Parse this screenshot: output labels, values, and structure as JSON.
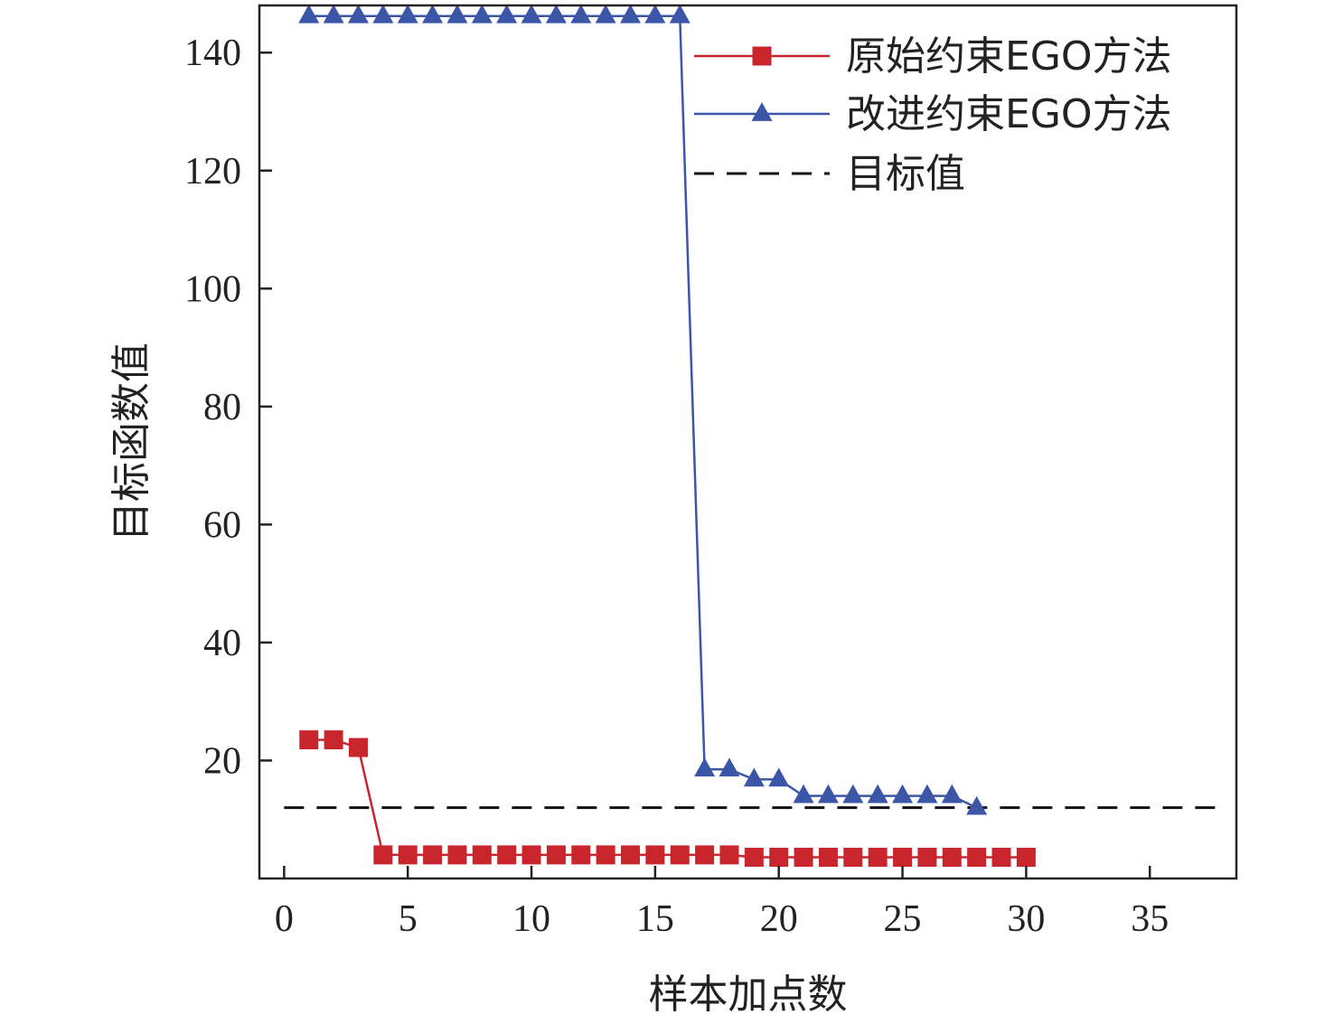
{
  "chart_data": {
    "type": "line",
    "xlabel": "样本加点数",
    "ylabel": "目标函数值",
    "xlim": [
      -1,
      38.5
    ],
    "ylim": [
      0,
      148
    ],
    "xticks": [
      0,
      5,
      10,
      15,
      20,
      25,
      30,
      35
    ],
    "yticks": [
      20,
      40,
      60,
      80,
      100,
      120,
      140
    ],
    "grid": false,
    "legend_position": "top-right",
    "series": [
      {
        "name": "原始约束EGO方法",
        "color": "#c8252c",
        "marker": "square",
        "x": [
          1,
          2,
          3,
          4,
          5,
          6,
          7,
          8,
          9,
          10,
          11,
          12,
          13,
          14,
          15,
          16,
          17,
          18,
          19,
          20,
          21,
          22,
          23,
          24,
          25,
          26,
          27,
          28,
          29,
          30
        ],
        "values": [
          23.5,
          23.5,
          22.2,
          4.0,
          4.0,
          4.0,
          4.0,
          4.0,
          4.0,
          4.0,
          4.0,
          4.0,
          4.0,
          4.0,
          4.0,
          4.0,
          4.0,
          4.0,
          3.6,
          3.6,
          3.6,
          3.6,
          3.6,
          3.6,
          3.6,
          3.6,
          3.6,
          3.6,
          3.6,
          3.6
        ]
      },
      {
        "name": "改进约束EGO方法",
        "color": "#3b56a7",
        "marker": "triangle",
        "x": [
          1,
          2,
          3,
          4,
          5,
          6,
          7,
          8,
          9,
          10,
          11,
          12,
          13,
          14,
          15,
          16,
          17,
          18,
          19,
          20,
          21,
          22,
          23,
          24,
          25,
          26,
          27,
          28
        ],
        "values": [
          146.2,
          146.2,
          146.2,
          146.2,
          146.2,
          146.2,
          146.2,
          146.2,
          146.2,
          146.2,
          146.2,
          146.2,
          146.2,
          146.2,
          146.2,
          146.2,
          18.5,
          18.5,
          16.8,
          16.8,
          14.0,
          14.0,
          14.0,
          14.0,
          14.0,
          14.0,
          14.0,
          12.0
        ]
      },
      {
        "name": "目标值",
        "color": "#111111",
        "style": "dashed",
        "value": 12.0
      }
    ]
  }
}
